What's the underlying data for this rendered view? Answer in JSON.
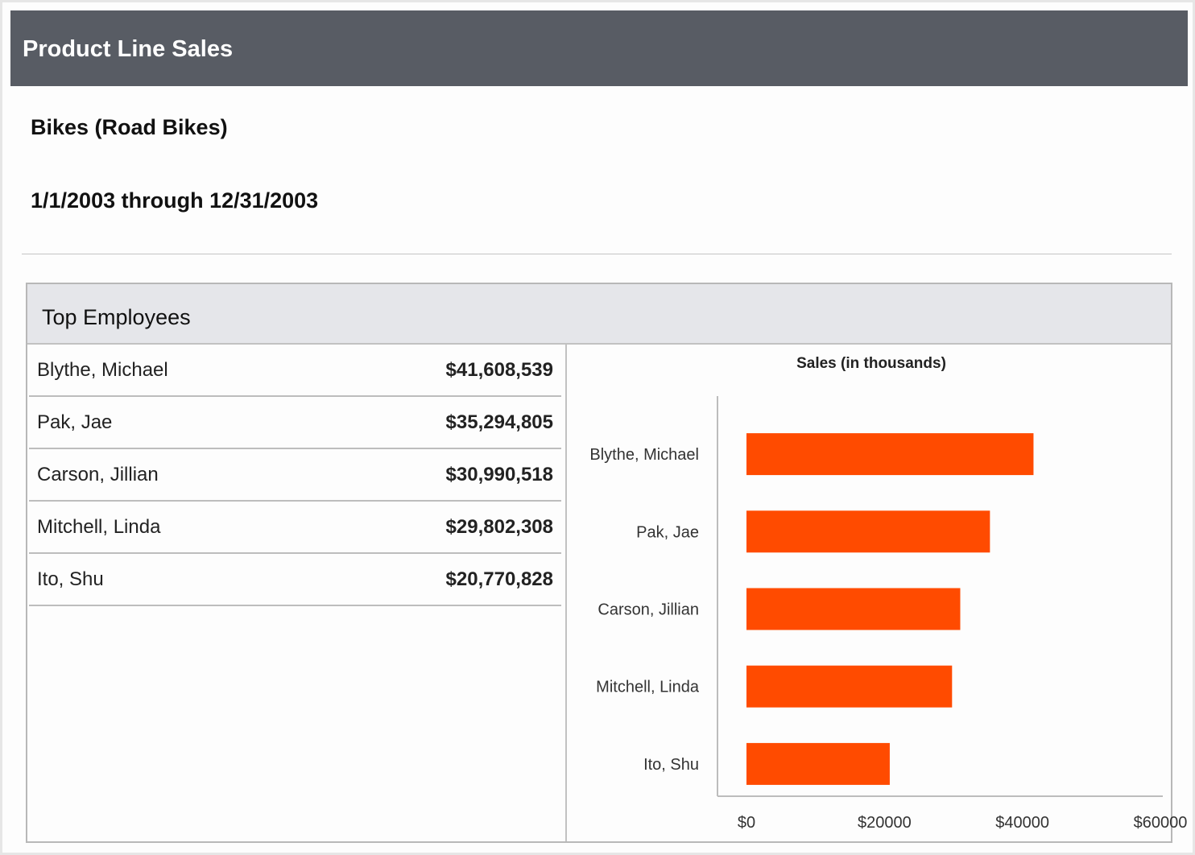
{
  "report": {
    "title": "Product Line Sales",
    "product": "Bikes (Road Bikes)",
    "date_range": "1/1/2003 through 12/31/2003"
  },
  "panel": {
    "title": "Top Employees",
    "rows": [
      {
        "name": "Blythe, Michael",
        "amount": "$41,608,539"
      },
      {
        "name": "Pak, Jae",
        "amount": "$35,294,805"
      },
      {
        "name": "Carson, Jillian",
        "amount": "$30,990,518"
      },
      {
        "name": "Mitchell, Linda",
        "amount": "$29,802,308"
      },
      {
        "name": "Ito, Shu",
        "amount": "$20,770,828"
      }
    ]
  },
  "chart_data": {
    "type": "bar",
    "orientation": "horizontal",
    "title": "Sales (in thousands)",
    "categories": [
      "Blythe, Michael",
      "Pak, Jae",
      "Carson, Jillian",
      "Mitchell, Linda",
      "Ito, Shu"
    ],
    "values": [
      41608.539,
      35294.805,
      30990.518,
      29802.308,
      20770.828
    ],
    "xlim": [
      0,
      60000
    ],
    "ticks": [
      0,
      20000,
      40000,
      60000
    ],
    "tick_labels": [
      "$0",
      "$20000",
      "$40000",
      "$60000"
    ],
    "bar_color": "#ff4b00",
    "grid": false,
    "legend": "none"
  },
  "colors": {
    "header_bg": "#585c64",
    "panel_header_bg": "#e5e6ea",
    "bar": "#ff4b00"
  }
}
